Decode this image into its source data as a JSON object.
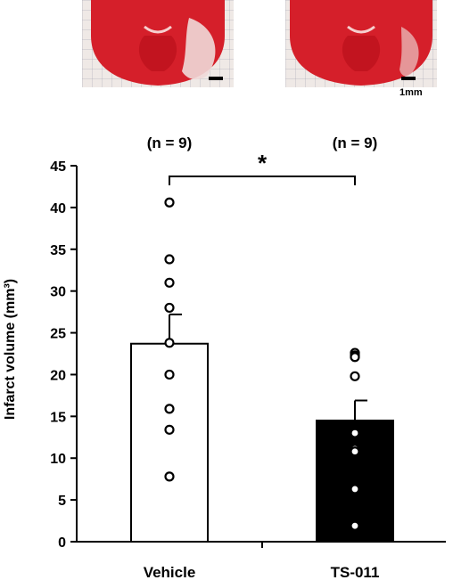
{
  "images": {
    "left_name": "vehicle-brain-slice",
    "right_name": "ts011-brain-slice",
    "scale_bar_label": "1mm"
  },
  "chart_data": {
    "type": "bar",
    "categories": [
      "Vehicle",
      "TS-011"
    ],
    "values": [
      23.7,
      14.5
    ],
    "error": [
      3.5,
      2.4
    ],
    "points": [
      [
        40.6,
        33.8,
        31.0,
        28.0,
        23.8,
        20.0,
        15.9,
        13.4,
        7.8
      ],
      [
        22.6,
        22.3,
        22.1,
        19.8,
        13.0,
        11.1,
        10.8,
        6.3,
        1.9
      ]
    ],
    "bar_colors": [
      "#ffffff",
      "#000000"
    ],
    "n_labels": [
      "(n = 9)",
      "(n = 9)"
    ],
    "significance": "*",
    "ylabel": "Infarct volume (mm³)",
    "ylim": [
      0,
      45
    ],
    "yticks": [
      0,
      5,
      10,
      15,
      20,
      25,
      30,
      35,
      40,
      45
    ]
  }
}
